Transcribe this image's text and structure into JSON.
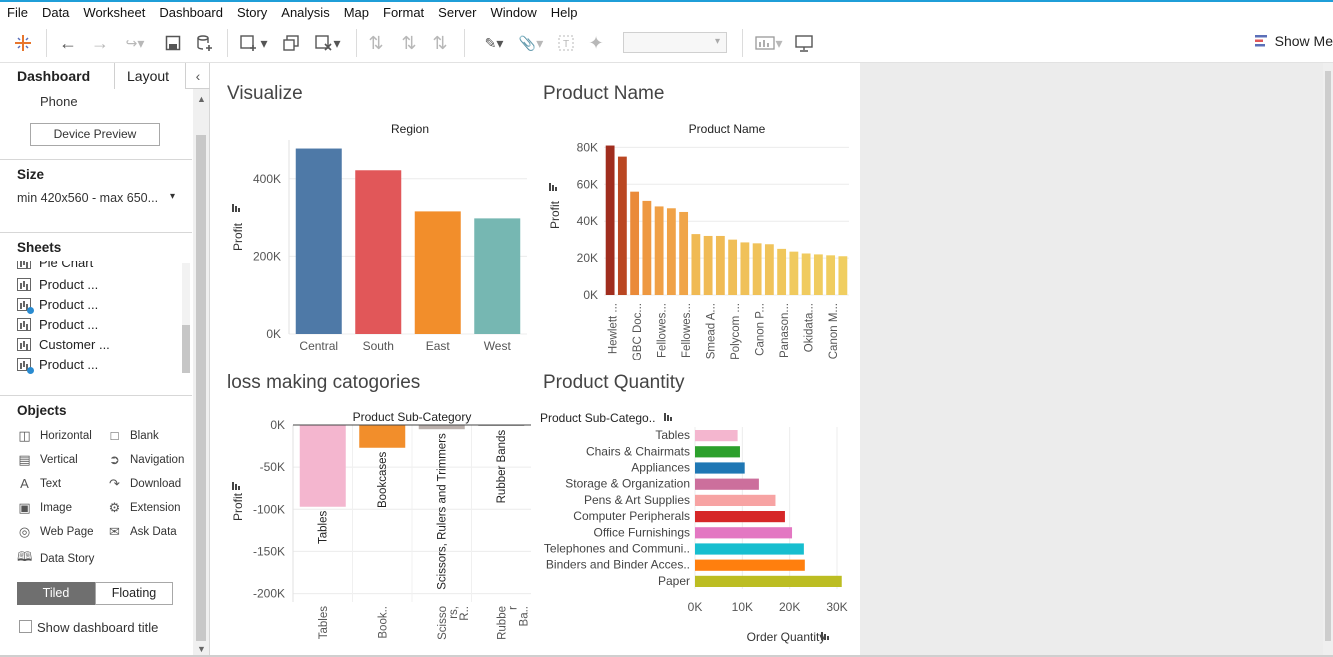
{
  "menu": [
    "File",
    "Data",
    "Worksheet",
    "Dashboard",
    "Story",
    "Analysis",
    "Map",
    "Format",
    "Server",
    "Window",
    "Help"
  ],
  "toolbar": {
    "show_me": "Show Me"
  },
  "left_pane": {
    "tab_dashboard": "Dashboard",
    "tab_layout": "Layout",
    "device": "Phone",
    "device_preview": "Device Preview",
    "size_heading": "Size",
    "size_value": "min 420x560 - max 650...",
    "sheets_heading": "Sheets",
    "sheets": [
      {
        "label": "Pie Chart",
        "badge": false
      },
      {
        "label": "Product ...",
        "badge": false
      },
      {
        "label": "Product ...",
        "badge": true
      },
      {
        "label": "Product ...",
        "badge": false
      },
      {
        "label": "Customer ...",
        "badge": false
      },
      {
        "label": "Product ...",
        "badge": true
      }
    ],
    "objects_heading": "Objects",
    "objects": [
      {
        "label": "Horizontal",
        "icon": "horizontal-icon"
      },
      {
        "label": "Blank",
        "icon": "blank-icon"
      },
      {
        "label": "Vertical",
        "icon": "vertical-icon"
      },
      {
        "label": "Navigation",
        "icon": "navigation-icon"
      },
      {
        "label": "Text",
        "icon": "text-icon"
      },
      {
        "label": "Download",
        "icon": "download-icon"
      },
      {
        "label": "Image",
        "icon": "image-icon"
      },
      {
        "label": "Extension",
        "icon": "extension-icon"
      },
      {
        "label": "Web Page",
        "icon": "web-page-icon"
      },
      {
        "label": "Ask Data",
        "icon": "ask-data-icon"
      },
      {
        "label": "Data Story",
        "icon": "data-story-icon"
      }
    ],
    "tiled": "Tiled",
    "floating": "Floating",
    "show_title": "Show dashboard title"
  },
  "dashboard": {
    "titles": {
      "visualize": "Visualize",
      "product_name": "Product Name",
      "loss": "loss making catogories",
      "product_quantity": "Product Quantity"
    }
  },
  "chart_data": [
    {
      "type": "bar",
      "title": "Region",
      "ylabel": "Profit",
      "categories": [
        "Central",
        "South",
        "East",
        "West"
      ],
      "values": [
        478000,
        422000,
        316000,
        298000
      ],
      "colors": [
        "#4e79a7",
        "#e15759",
        "#f28e2b",
        "#76b7b2"
      ],
      "yticks": [
        "0K",
        "200K",
        "400K"
      ],
      "ylim": [
        0,
        500000
      ]
    },
    {
      "type": "bar",
      "title": "Product Name",
      "ylabel": "Profit",
      "categories": [
        "Hewlett ...",
        "",
        "GBC Doc...",
        "",
        "Fellowes...",
        "",
        "Fellowes...",
        "",
        "Smead A...",
        "",
        "Polycom ...",
        "",
        "Canon P...",
        "",
        "Panason...",
        "",
        "Okidata...",
        "",
        "Canon M...",
        ""
      ],
      "values": [
        81000,
        75000,
        56000,
        51000,
        48000,
        47000,
        45000,
        33000,
        32000,
        32000,
        30000,
        28500,
        28000,
        27500,
        25000,
        23500,
        22500,
        22000,
        21500,
        21000
      ],
      "yticks": [
        "0K",
        "20K",
        "40K",
        "60K",
        "80K"
      ],
      "ylim": [
        0,
        84000
      ]
    },
    {
      "type": "bar",
      "title": "Product Sub-Category",
      "ylabel": "Profit",
      "categories": [
        "Tables",
        "Book..",
        "Scisso rs, R..",
        "Rubbe r Ba.."
      ],
      "bar_labels": [
        "Tables",
        "Bookcases",
        "Scissors, Rulers and Trimmers",
        "Rubber Bands"
      ],
      "values": [
        -97000,
        -27000,
        -5000,
        -1000
      ],
      "colors": [
        "#f4b6cf",
        "#f28e2b",
        "#bab0ac",
        "#8c8c8c"
      ],
      "yticks": [
        "0K",
        "-50K",
        "-100K",
        "-150K",
        "-200K"
      ],
      "ylim": [
        -210000,
        0
      ]
    },
    {
      "type": "bar",
      "orientation": "horizontal",
      "title": "Product Sub-Catego..",
      "xlabel": "Order Quantity",
      "categories": [
        "Tables",
        "Chairs & Chairmats",
        "Appliances",
        "Storage & Organization",
        "Pens & Art Supplies",
        "Computer Peripherals",
        "Office Furnishings",
        "Telephones and Communi..",
        "Binders and Binder Acces..",
        "Paper"
      ],
      "values": [
        9000,
        9500,
        10500,
        13500,
        17000,
        19000,
        20500,
        23000,
        23200,
        31000
      ],
      "colors": [
        "#f4b6cf",
        "#2ca02c",
        "#1f77b4",
        "#cc6f9c",
        "#f7a3a3",
        "#d62728",
        "#e377c2",
        "#17becf",
        "#ff7f0e",
        "#bcbd22"
      ],
      "xticks": [
        "0K",
        "10K",
        "20K",
        "30K"
      ],
      "xlim": [
        0,
        30000
      ]
    }
  ]
}
